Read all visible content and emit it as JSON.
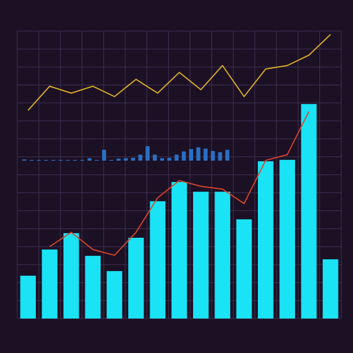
{
  "chart_data": [
    {
      "type": "bar",
      "categories": [
        null,
        null,
        null,
        null,
        null,
        null,
        null,
        null,
        null,
        null,
        null,
        null,
        null,
        null,
        null
      ],
      "ylim": [
        0,
        100
      ],
      "yticks": [
        0,
        6.25,
        12.5,
        18.75,
        25,
        31.25,
        37.5,
        43.75,
        50,
        56.25,
        62.5,
        68.75,
        75,
        81.25,
        87.5,
        93.75,
        100
      ],
      "grid": true,
      "series": [
        {
          "type": "bar",
          "color": "#19e3f5",
          "values": [
            14.9,
            24,
            29.7,
            21.8,
            16.5,
            28.1,
            40.8,
            47.5,
            44.1,
            44.1,
            34.5,
            54.7,
            55.2,
            74.6,
            20.6
          ]
        },
        {
          "type": "line",
          "color": "#e0452a",
          "values": [
            null,
            25,
            30,
            24,
            22,
            30,
            42,
            48,
            46,
            45,
            40,
            55,
            57,
            72,
            null
          ]
        },
        {
          "type": "line",
          "color": "#e6b422",
          "values": [
            72.4,
            80.8,
            78.4,
            80.8,
            77.2,
            83.2,
            78.4,
            85.6,
            79.6,
            88,
            77.2,
            86.8,
            88,
            91.6,
            98.8
          ]
        }
      ]
    },
    {
      "type": "bar",
      "ylim": [
        0,
        100
      ],
      "series": [
        {
          "type": "bar",
          "color": "#2a6fc4",
          "values": [
            5,
            3,
            3,
            3,
            3,
            3,
            3,
            3,
            3,
            10,
            3,
            45,
            3,
            8,
            10,
            12,
            25,
            60,
            25,
            10,
            12,
            25,
            38,
            48,
            55,
            50,
            40,
            35,
            45
          ]
        }
      ]
    }
  ]
}
